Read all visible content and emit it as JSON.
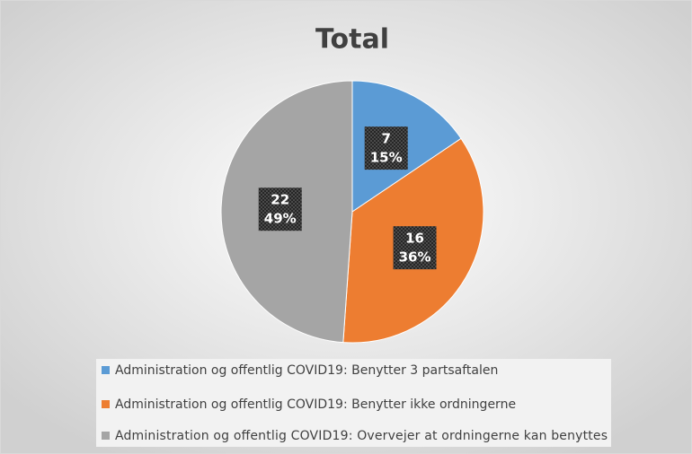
{
  "chart_data": {
    "type": "pie",
    "title": "Total",
    "categories": [
      "Administration og offentlig COVID19: Benytter 3 partsaftalen",
      "Administration og offentlig COVID19: Benytter ikke ordningerne",
      "Administration og offentlig COVID19: Overvejer at ordningerne kan benyttes"
    ],
    "values": [
      7,
      16,
      22
    ],
    "percentages": [
      15,
      36,
      49
    ],
    "percentage_labels": [
      "15%",
      "36%",
      "49%"
    ],
    "colors": [
      "#5b9bd5",
      "#ed7d31",
      "#a5a5a5"
    ],
    "legend": "bottom"
  }
}
